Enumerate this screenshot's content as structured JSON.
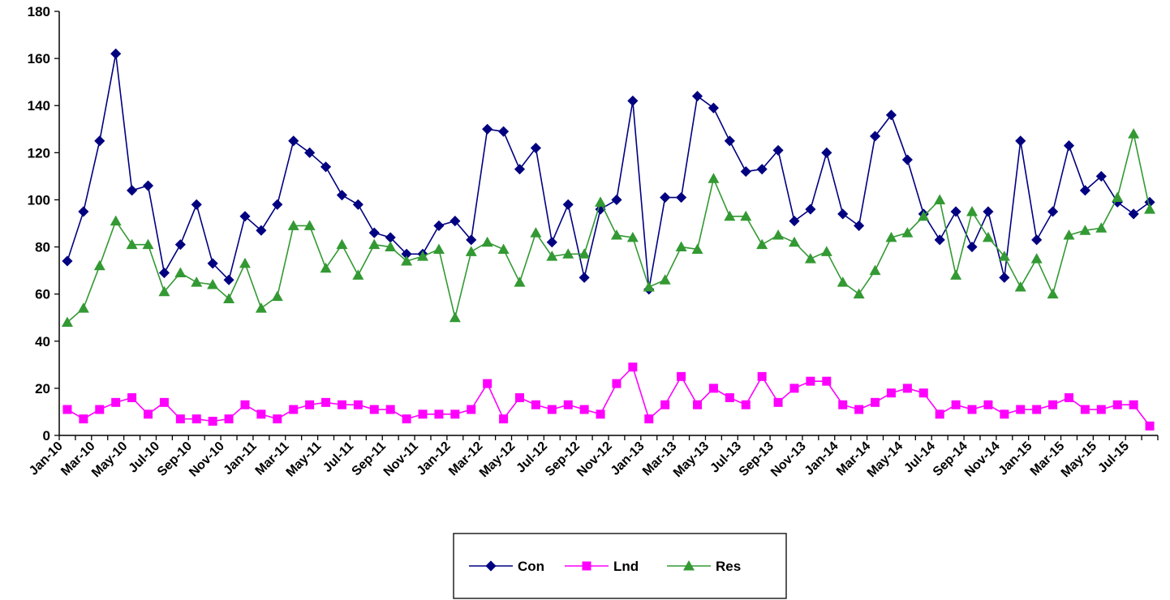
{
  "chart_data": {
    "type": "line",
    "title": "",
    "xlabel": "",
    "ylabel": "",
    "ylim": [
      0,
      180
    ],
    "y_ticks": [
      "0",
      "20",
      "40",
      "60",
      "80",
      "100",
      "120",
      "140",
      "160",
      "180"
    ],
    "x_tick_labels": [
      "Jan-10",
      "Mar-10",
      "May-10",
      "Jul-10",
      "Sep-10",
      "Nov-10",
      "Jan-11",
      "Mar-11",
      "May-11",
      "Jul-11",
      "Sep-11",
      "Nov-11",
      "Jan-12",
      "Mar-12",
      "May-12",
      "Jul-12",
      "Sep-12",
      "Nov-12",
      "Jan-13",
      "Mar-13",
      "May-13",
      "Jul-13",
      "Sep-13",
      "Nov-13",
      "Jan-14",
      "Mar-14",
      "May-14",
      "Jul-14",
      "Sep-14",
      "Nov-14",
      "Jan-15",
      "Mar-15",
      "May-15",
      "Jul-15"
    ],
    "grid": false,
    "legend_position": "bottom",
    "x": [
      "Jan-10",
      "Feb-10",
      "Mar-10",
      "Apr-10",
      "May-10",
      "Jun-10",
      "Jul-10",
      "Aug-10",
      "Sep-10",
      "Oct-10",
      "Nov-10",
      "Dec-10",
      "Jan-11",
      "Feb-11",
      "Mar-11",
      "Apr-11",
      "May-11",
      "Jun-11",
      "Jul-11",
      "Aug-11",
      "Sep-11",
      "Oct-11",
      "Nov-11",
      "Dec-11",
      "Jan-12",
      "Feb-12",
      "Mar-12",
      "Apr-12",
      "May-12",
      "Jun-12",
      "Jul-12",
      "Aug-12",
      "Sep-12",
      "Oct-12",
      "Nov-12",
      "Dec-12",
      "Jan-13",
      "Feb-13",
      "Mar-13",
      "Apr-13",
      "May-13",
      "Jun-13",
      "Jul-13",
      "Aug-13",
      "Sep-13",
      "Oct-13",
      "Nov-13",
      "Dec-13",
      "Jan-14",
      "Feb-14",
      "Mar-14",
      "Apr-14",
      "May-14",
      "Jun-14",
      "Jul-14",
      "Aug-14",
      "Sep-14",
      "Oct-14",
      "Nov-14",
      "Dec-14",
      "Jan-15",
      "Feb-15",
      "Mar-15",
      "Apr-15",
      "May-15",
      "Jun-15",
      "Jul-15",
      "Aug-15"
    ],
    "series": [
      {
        "name": "Con",
        "color": "#000080",
        "marker": "diamond",
        "values": [
          74,
          95,
          125,
          162,
          104,
          106,
          69,
          81,
          98,
          73,
          66,
          93,
          87,
          98,
          125,
          120,
          114,
          102,
          98,
          86,
          84,
          77,
          77,
          89,
          91,
          83,
          130,
          129,
          113,
          122,
          82,
          98,
          67,
          96,
          100,
          142,
          62,
          101,
          101,
          144,
          139,
          125,
          112,
          113,
          121,
          91,
          96,
          120,
          94,
          89,
          127,
          136,
          117,
          94,
          83,
          95,
          80,
          95,
          67,
          125,
          83,
          95,
          123,
          104,
          110,
          99,
          94,
          99
        ]
      },
      {
        "name": "Lnd",
        "color": "#FF00FF",
        "marker": "square",
        "values": [
          11,
          7,
          11,
          14,
          16,
          9,
          14,
          7,
          7,
          6,
          7,
          13,
          9,
          7,
          11,
          13,
          14,
          13,
          13,
          11,
          11,
          7,
          9,
          9,
          9,
          11,
          22,
          7,
          16,
          13,
          11,
          13,
          11,
          9,
          22,
          29,
          7,
          13,
          25,
          13,
          20,
          16,
          13,
          25,
          14,
          20,
          23,
          23,
          13,
          11,
          14,
          18,
          20,
          18,
          9,
          13,
          11,
          13,
          9,
          11,
          11,
          13,
          16,
          11,
          11,
          13,
          13,
          4
        ]
      },
      {
        "name": "Res",
        "color": "#339933",
        "marker": "triangle",
        "values": [
          48,
          54,
          72,
          91,
          81,
          81,
          61,
          69,
          65,
          64,
          58,
          73,
          54,
          59,
          89,
          89,
          71,
          81,
          68,
          81,
          80,
          74,
          76,
          79,
          50,
          78,
          82,
          79,
          65,
          86,
          76,
          77,
          77,
          99,
          85,
          84,
          63,
          66,
          80,
          79,
          109,
          93,
          93,
          81,
          85,
          82,
          75,
          78,
          65,
          60,
          70,
          84,
          86,
          93,
          100,
          68,
          95,
          84,
          76,
          63,
          75,
          60,
          85,
          87,
          88,
          101,
          128,
          96
        ]
      }
    ]
  }
}
